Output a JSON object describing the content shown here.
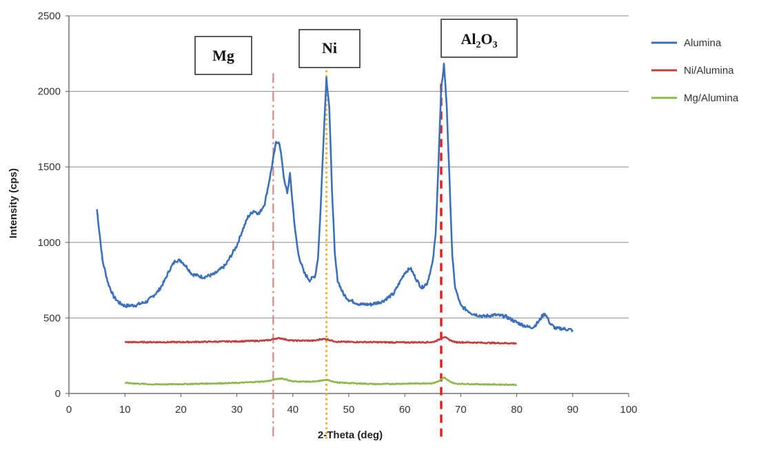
{
  "chart_data": {
    "type": "line",
    "xlabel": "2-Theta (deg)",
    "ylabel": "Intensity (cps)",
    "xlim": [
      0,
      100
    ],
    "ylim": [
      0,
      2500
    ],
    "xticks": [
      0,
      10,
      20,
      30,
      40,
      50,
      60,
      70,
      80,
      90,
      100
    ],
    "yticks": [
      0,
      500,
      1000,
      1500,
      2000,
      2500
    ],
    "grid": "horizontal",
    "legend": "right",
    "series": [
      {
        "name": "Alumina",
        "color": "#3a70bb",
        "x": [
          5,
          6,
          7,
          8,
          9,
          10,
          12,
          14,
          16,
          17,
          18,
          19,
          20,
          21,
          22,
          24,
          26,
          28,
          30,
          31,
          32,
          33,
          34,
          35,
          36,
          37,
          37.5,
          38,
          38.5,
          39,
          39.5,
          40,
          40.5,
          41,
          42,
          43,
          44,
          44.5,
          45,
          45.5,
          46,
          46.5,
          47,
          47.5,
          48,
          49,
          50,
          52,
          54,
          56,
          58,
          59,
          60,
          61,
          62,
          63,
          64,
          65,
          65.5,
          66,
          66.5,
          67,
          67.5,
          68,
          68.5,
          69,
          70,
          72,
          74,
          76,
          78,
          80,
          82,
          83,
          84,
          84.5,
          85,
          85.5,
          86,
          87,
          88,
          90
        ],
        "y": [
          1220,
          880,
          730,
          640,
          600,
          580,
          585,
          610,
          680,
          740,
          820,
          880,
          880,
          840,
          790,
          770,
          790,
          850,
          980,
          1080,
          1170,
          1210,
          1190,
          1260,
          1450,
          1660,
          1670,
          1560,
          1400,
          1330,
          1450,
          1240,
          1050,
          920,
          800,
          750,
          780,
          900,
          1250,
          1700,
          2090,
          1900,
          1350,
          920,
          750,
          660,
          620,
          590,
          590,
          610,
          660,
          730,
          800,
          830,
          760,
          700,
          730,
          870,
          1050,
          1500,
          2010,
          2180,
          1900,
          1400,
          900,
          700,
          580,
          530,
          510,
          520,
          510,
          470,
          440,
          440,
          480,
          510,
          530,
          500,
          460,
          430,
          430,
          420
        ]
      },
      {
        "name": "Ni/Alumina",
        "color": "#c0403f",
        "x": [
          10,
          20,
          30,
          35,
          36,
          37,
          38,
          39,
          40,
          44,
          45,
          46,
          47,
          48,
          60,
          65,
          66,
          67,
          68,
          69,
          75,
          80
        ],
        "y": [
          340,
          340,
          345,
          350,
          355,
          365,
          365,
          355,
          350,
          350,
          360,
          360,
          350,
          342,
          338,
          340,
          355,
          375,
          355,
          340,
          335,
          332
        ]
      },
      {
        "name": "Mg/Alumina",
        "color": "#8db84a",
        "x": [
          10,
          15,
          20,
          30,
          35,
          36,
          37,
          38,
          39,
          40,
          44,
          45,
          46,
          47,
          48,
          55,
          60,
          65,
          66,
          67,
          68,
          69,
          75,
          80
        ],
        "y": [
          70,
          60,
          62,
          70,
          80,
          85,
          95,
          100,
          90,
          80,
          78,
          85,
          90,
          82,
          72,
          62,
          65,
          68,
          80,
          105,
          80,
          65,
          60,
          58
        ]
      }
    ],
    "reference_lines": [
      {
        "label": "Mg",
        "x": 36.5,
        "color": "#d08a86",
        "style": "dash-dot",
        "y_range": [
          -300,
          2120
        ]
      },
      {
        "label": "Ni",
        "x": 46,
        "color": "#f2b233",
        "style": "dotted",
        "y_range": [
          -300,
          2140
        ]
      },
      {
        "label": "Al2O3",
        "x": 66.5,
        "color": "#e0241c",
        "style": "dashed",
        "y_range": [
          -300,
          2050
        ]
      }
    ]
  },
  "annotations": {
    "mg": "Mg",
    "ni": "Ni",
    "al_main": "Al",
    "al_sub1": "2",
    "al_o": "O",
    "al_sub2": "3"
  }
}
